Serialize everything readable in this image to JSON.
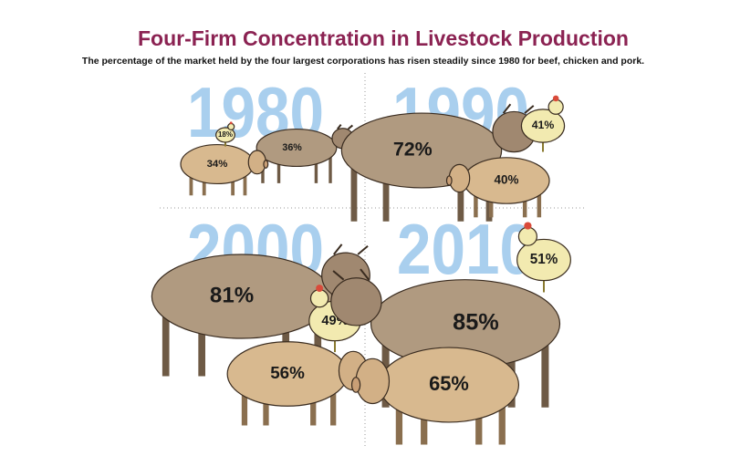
{
  "title": "Four-Firm Concentration in Livestock Production",
  "subtitle": "The percentage of the market held by the four largest corporations has risen steadily since 1980 for beef, chicken and pork.",
  "panels": [
    {
      "year": "1980",
      "cow": {
        "value": 36,
        "label": "36%"
      },
      "chicken": {
        "value": 18,
        "label": "18%"
      },
      "pig": {
        "value": 34,
        "label": "34%"
      }
    },
    {
      "year": "1990",
      "cow": {
        "value": 72,
        "label": "72%"
      },
      "chicken": {
        "value": 41,
        "label": "41%"
      },
      "pig": {
        "value": 40,
        "label": "40%"
      }
    },
    {
      "year": "2000",
      "cow": {
        "value": 81,
        "label": "81%"
      },
      "chicken": {
        "value": 49,
        "label": "49%"
      },
      "pig": {
        "value": 56,
        "label": "56%"
      }
    },
    {
      "year": "2010",
      "cow": {
        "value": 85,
        "label": "85%"
      },
      "chicken": {
        "value": 51,
        "label": "51%"
      },
      "pig": {
        "value": 65,
        "label": "65%"
      }
    }
  ]
}
